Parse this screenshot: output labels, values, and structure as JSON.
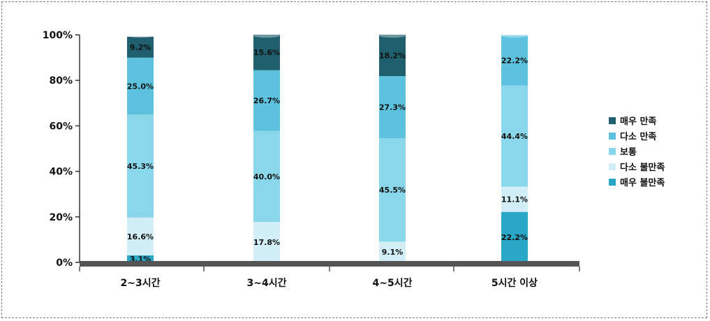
{
  "chart_data": {
    "type": "bar",
    "stacked": true,
    "title": "",
    "xlabel": "",
    "ylabel": "",
    "ylim": [
      0,
      100
    ],
    "y_ticks": [
      "0%",
      "20%",
      "40%",
      "60%",
      "80%",
      "100%"
    ],
    "categories": [
      "2~3시간",
      "3~4시간",
      "4~5시간",
      "5시간 이상"
    ],
    "series": [
      {
        "name": "매우 불만족",
        "color": "#2aa6c6",
        "values": [
          3.1,
          0,
          0,
          22.2
        ],
        "labels": [
          "3.1%",
          "",
          "",
          "22.2%"
        ]
      },
      {
        "name": "다소 불만족",
        "color": "#d2eff7",
        "values": [
          16.6,
          17.8,
          9.1,
          11.1
        ],
        "labels": [
          "16.6%",
          "17.8%",
          "9.1%",
          "11.1%"
        ]
      },
      {
        "name": "보통",
        "color": "#8ad6ea",
        "values": [
          45.3,
          40.0,
          45.5,
          44.4
        ],
        "labels": [
          "45.3%",
          "40.0%",
          "45.5%",
          "44.4%"
        ]
      },
      {
        "name": "다소 만족",
        "color": "#5cc2de",
        "values": [
          25.0,
          26.7,
          27.3,
          22.2
        ],
        "labels": [
          "25.0%",
          "26.7%",
          "27.3%",
          "22.2%"
        ]
      },
      {
        "name": "매우 만족",
        "color": "#1f5f6e",
        "values": [
          9.2,
          15.6,
          18.2,
          0
        ],
        "labels": [
          "9.2%",
          "15.6%",
          "18.2%",
          ""
        ]
      }
    ],
    "legend_position": "right",
    "legend_order": [
      "매우 만족",
      "다소 만족",
      "보통",
      "다소 불만족",
      "매우 불만족"
    ],
    "grid": false
  }
}
